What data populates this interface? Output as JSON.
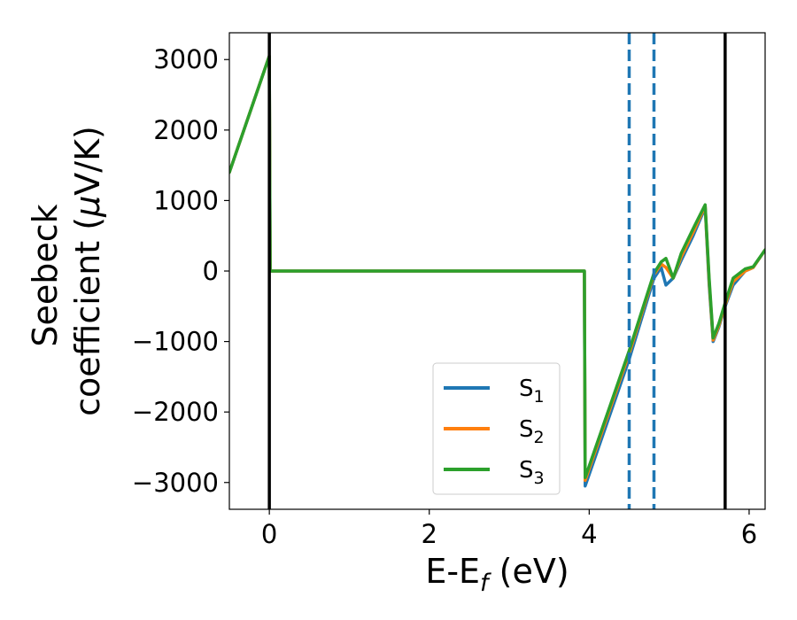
{
  "chart_data": {
    "type": "line",
    "xlabel": {
      "main": "E-E",
      "sub": "f",
      "unit": " (eV)"
    },
    "ylabel": {
      "line1": "Seebeck",
      "line2": "coefficient  (",
      "mu": "μ",
      "unit": "V/K)"
    },
    "xlim": [
      -0.5,
      6.2
    ],
    "ylim": [
      -3380,
      3380
    ],
    "xticks": [
      0,
      2,
      4,
      6
    ],
    "xtick_labels": [
      "0",
      "2",
      "4",
      "6"
    ],
    "yticks": [
      3000,
      2000,
      1000,
      0,
      -1000,
      -2000,
      -3000
    ],
    "ytick_labels": [
      "3000",
      "2000",
      "1000",
      "0",
      "−1000",
      "−2000",
      "−3000"
    ],
    "grid": false,
    "legend_position": "lower-center",
    "vertical_lines": [
      {
        "x": 0.0,
        "style": "solid",
        "color": "#000000"
      },
      {
        "x": 5.7,
        "style": "solid",
        "color": "#000000"
      },
      {
        "x": 4.5,
        "style": "dashed",
        "color": "#1f77b4"
      },
      {
        "x": 4.81,
        "style": "dashed",
        "color": "#1f77b4"
      }
    ],
    "series": [
      {
        "name": "S",
        "sub": "1",
        "color": "#1f77b4",
        "x": [
          -0.5,
          0.0,
          0.01,
          3.93,
          3.94,
          3.95,
          4.5,
          4.81,
          4.9,
          4.96,
          5.05,
          5.15,
          5.3,
          5.45,
          5.5,
          5.55,
          5.62,
          5.7,
          5.8,
          5.95,
          6.05,
          6.2
        ],
        "y": [
          1400,
          3050,
          0,
          0,
          0,
          -3050,
          -1250,
          -100,
          50,
          -200,
          -100,
          150,
          500,
          900,
          -200,
          -1000,
          -800,
          -500,
          -200,
          0,
          50,
          300
        ]
      },
      {
        "name": "S",
        "sub": "2",
        "color": "#ff7f0e",
        "x": [
          -0.5,
          0.0,
          0.01,
          3.93,
          3.94,
          3.95,
          4.5,
          4.81,
          4.9,
          4.96,
          5.05,
          5.15,
          5.3,
          5.45,
          5.5,
          5.55,
          5.62,
          5.7,
          5.8,
          5.95,
          6.05,
          6.2
        ],
        "y": [
          1400,
          3050,
          0,
          0,
          0,
          -2970,
          -1170,
          -50,
          100,
          50,
          -100,
          200,
          550,
          920,
          -150,
          -980,
          -780,
          -480,
          -150,
          0,
          50,
          300
        ]
      },
      {
        "name": "S",
        "sub": "3",
        "color": "#2ca02c",
        "x": [
          -0.5,
          0.0,
          0.01,
          3.93,
          3.94,
          3.95,
          4.5,
          4.81,
          4.9,
          4.96,
          5.05,
          5.15,
          5.3,
          5.45,
          5.5,
          5.55,
          5.62,
          5.7,
          5.8,
          5.95,
          6.05,
          6.2
        ],
        "y": [
          1400,
          3050,
          0,
          0,
          0,
          -2930,
          -1130,
          -30,
          130,
          180,
          -100,
          250,
          600,
          940,
          -100,
          -950,
          -750,
          -450,
          -100,
          30,
          60,
          300
        ]
      }
    ]
  }
}
